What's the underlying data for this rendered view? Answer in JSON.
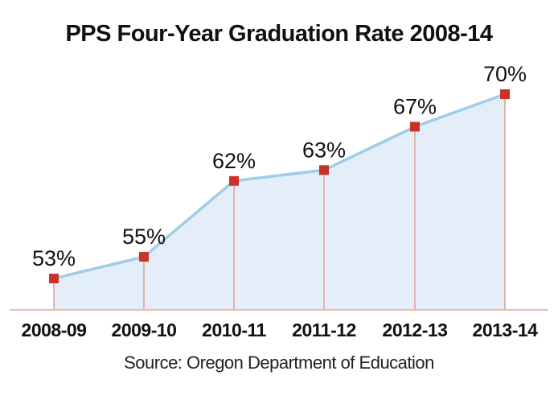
{
  "chart_data": {
    "type": "area",
    "title": "PPS Four-Year Graduation Rate 2008-14",
    "categories": [
      "2008-09",
      "2009-10",
      "2010-11",
      "2011-12",
      "2012-13",
      "2013-14"
    ],
    "values": [
      53,
      55,
      62,
      63,
      67,
      70
    ],
    "value_labels": [
      "53%",
      "55%",
      "62%",
      "63%",
      "67%",
      "70%"
    ],
    "xlabel": "",
    "ylabel": "",
    "y_axis_visible": false,
    "grid": false,
    "legend": "none",
    "source": "Source: Oregon Department of Education",
    "colors": {
      "line": "#9fcde8",
      "fill": "#e4eef8",
      "marker": "#c8322a",
      "drop_lines": "#e0a08c",
      "baseline": "#f0b8b0"
    }
  }
}
